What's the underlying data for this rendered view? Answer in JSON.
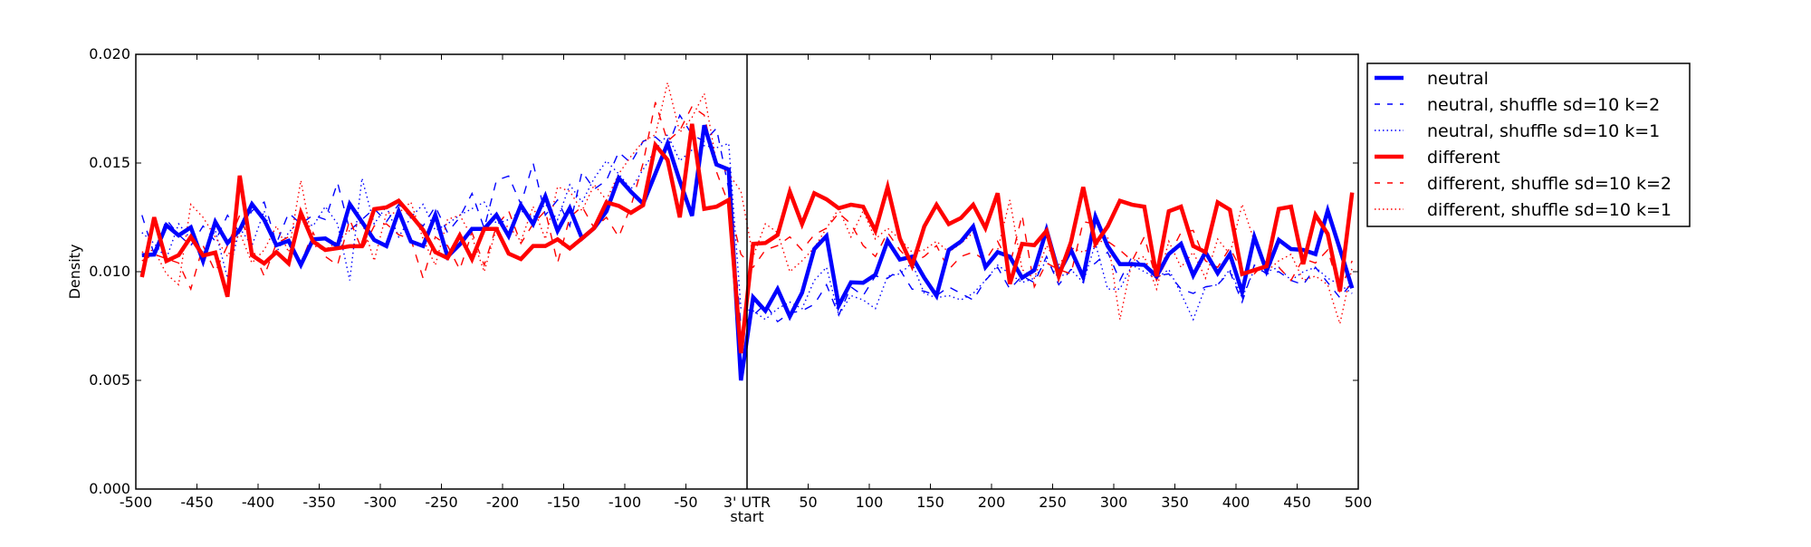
{
  "chart_data": {
    "type": "line",
    "title": "",
    "xlabel": "start",
    "ylabel": "Density",
    "xlim": [
      -500,
      500
    ],
    "ylim": [
      0.0,
      0.02
    ],
    "grid": false,
    "legend_position": "outside-top-right",
    "x_ticks": [
      {
        "value": -500,
        "label": "-500"
      },
      {
        "value": -450,
        "label": "-450"
      },
      {
        "value": -400,
        "label": "-400"
      },
      {
        "value": -350,
        "label": "-350"
      },
      {
        "value": -300,
        "label": "-300"
      },
      {
        "value": -250,
        "label": "-250"
      },
      {
        "value": -200,
        "label": "-200"
      },
      {
        "value": -150,
        "label": "-150"
      },
      {
        "value": -100,
        "label": "-100"
      },
      {
        "value": -50,
        "label": "-50"
      },
      {
        "value": 0,
        "label": "3' UTR"
      },
      {
        "value": 50,
        "label": "50"
      },
      {
        "value": 100,
        "label": "100"
      },
      {
        "value": 150,
        "label": "150"
      },
      {
        "value": 200,
        "label": "200"
      },
      {
        "value": 250,
        "label": "250"
      },
      {
        "value": 300,
        "label": "300"
      },
      {
        "value": 350,
        "label": "350"
      },
      {
        "value": 400,
        "label": "400"
      },
      {
        "value": 450,
        "label": "450"
      },
      {
        "value": 500,
        "label": "500"
      }
    ],
    "y_ticks": [
      {
        "value": 0.0,
        "label": "0.000"
      },
      {
        "value": 0.005,
        "label": "0.005"
      },
      {
        "value": 0.01,
        "label": "0.010"
      },
      {
        "value": 0.015,
        "label": "0.015"
      },
      {
        "value": 0.02,
        "label": "0.020"
      }
    ],
    "vline": {
      "x": 0
    },
    "x_start": -495,
    "x_step": 10,
    "series": [
      {
        "name": "neutral",
        "color": "#0000ff",
        "style": "solid",
        "values": [
          0.01076,
          0.01079,
          0.01214,
          0.01167,
          0.01204,
          0.01049,
          0.01229,
          0.01132,
          0.01192,
          0.01311,
          0.01239,
          0.01122,
          0.01142,
          0.01031,
          0.01149,
          0.01153,
          0.01118,
          0.01311,
          0.01229,
          0.01146,
          0.01118,
          0.01278,
          0.01139,
          0.01118,
          0.01261,
          0.01069,
          0.01125,
          0.01197,
          0.01197,
          0.01261,
          0.01164,
          0.01306,
          0.01219,
          0.01347,
          0.01188,
          0.01292,
          0.01153,
          0.01201,
          0.01278,
          0.01431,
          0.01368,
          0.01313,
          0.01451,
          0.0159,
          0.01417,
          0.01257,
          0.01674,
          0.01493,
          0.0147,
          0.005,
          0.00882,
          0.0082,
          0.0092,
          0.00794,
          0.00903,
          0.01104,
          0.01164,
          0.00844,
          0.00951,
          0.00949,
          0.00986,
          0.01142,
          0.01056,
          0.01069,
          0.00972,
          0.00889,
          0.011,
          0.01139,
          0.01208,
          0.01021,
          0.0109,
          0.01069,
          0.00972,
          0.01007,
          0.01192,
          0.00993,
          0.011,
          0.00975,
          0.01253,
          0.01118,
          0.01035,
          0.01035,
          0.01031,
          0.00979,
          0.01081,
          0.01128,
          0.00983,
          0.0109,
          0.00993,
          0.01081,
          0.00906,
          0.0116,
          0.01003,
          0.01146,
          0.01104,
          0.011,
          0.01081,
          0.01281,
          0.01104,
          0.00924
        ]
      },
      {
        "name": "neutral, shuffle sd=10 k=2",
        "color": "#0000ff",
        "style": "dashed",
        "values": [
          0.0126,
          0.0108,
          0.0124,
          0.0117,
          0.0112,
          0.0121,
          0.0114,
          0.0126,
          0.0118,
          0.0128,
          0.0132,
          0.0113,
          0.0127,
          0.0122,
          0.0126,
          0.0124,
          0.0141,
          0.0119,
          0.0124,
          0.0129,
          0.0123,
          0.0131,
          0.0125,
          0.0121,
          0.013,
          0.0118,
          0.0125,
          0.0136,
          0.012,
          0.0142,
          0.0144,
          0.0131,
          0.015,
          0.0126,
          0.0133,
          0.0121,
          0.0146,
          0.0138,
          0.0142,
          0.0155,
          0.015,
          0.016,
          0.0162,
          0.0157,
          0.0172,
          0.0163,
          0.016,
          0.0166,
          0.0138,
          0.0075,
          0.008,
          0.0085,
          0.0077,
          0.0081,
          0.0082,
          0.0085,
          0.0094,
          0.008,
          0.0093,
          0.0089,
          0.0098,
          0.0097,
          0.0101,
          0.0092,
          0.0091,
          0.0089,
          0.0093,
          0.009,
          0.0087,
          0.0096,
          0.0102,
          0.0092,
          0.0098,
          0.0095,
          0.0107,
          0.0094,
          0.0101,
          0.01,
          0.0104,
          0.0109,
          0.0096,
          0.0107,
          0.0102,
          0.0098,
          0.0099,
          0.0092,
          0.009,
          0.0093,
          0.0094,
          0.01,
          0.0086,
          0.0103,
          0.0099,
          0.01,
          0.0096,
          0.0094,
          0.0102,
          0.0095,
          0.0088,
          0.0095
        ]
      },
      {
        "name": "neutral, shuffle sd=10 k=1",
        "color": "#0000ff",
        "style": "dotted",
        "values": [
          0.0118,
          0.0113,
          0.0106,
          0.0122,
          0.0115,
          0.0109,
          0.0119,
          0.0097,
          0.012,
          0.0112,
          0.0128,
          0.0109,
          0.0118,
          0.0124,
          0.0121,
          0.013,
          0.0122,
          0.0096,
          0.0143,
          0.0122,
          0.013,
          0.0116,
          0.0125,
          0.0131,
          0.0119,
          0.0122,
          0.0126,
          0.0129,
          0.0132,
          0.0122,
          0.0124,
          0.0128,
          0.0125,
          0.0131,
          0.0124,
          0.014,
          0.0132,
          0.0143,
          0.0151,
          0.0145,
          0.0138,
          0.0147,
          0.0156,
          0.0163,
          0.0151,
          0.0156,
          0.0158,
          0.0157,
          0.0159,
          0.0083,
          0.0082,
          0.0078,
          0.0083,
          0.0086,
          0.0083,
          0.0096,
          0.0102,
          0.008,
          0.0089,
          0.0087,
          0.0083,
          0.0098,
          0.0099,
          0.0104,
          0.009,
          0.0088,
          0.0089,
          0.0087,
          0.009,
          0.0096,
          0.0103,
          0.0099,
          0.0095,
          0.0097,
          0.0105,
          0.0097,
          0.0101,
          0.0095,
          0.0113,
          0.0092,
          0.0092,
          0.0103,
          0.01,
          0.0097,
          0.0101,
          0.009,
          0.0078,
          0.0093,
          0.0094,
          0.0101,
          0.0088,
          0.0101,
          0.01,
          0.0102,
          0.0096,
          0.01,
          0.0102,
          0.0097,
          0.0094,
          0.009
        ]
      },
      {
        "name": "different",
        "color": "#ff0000",
        "style": "solid",
        "values": [
          0.00975,
          0.0125,
          0.01049,
          0.01076,
          0.0116,
          0.01074,
          0.01088,
          0.00885,
          0.01442,
          0.01076,
          0.01038,
          0.0109,
          0.01038,
          0.01271,
          0.01139,
          0.011,
          0.01108,
          0.01117,
          0.01117,
          0.01288,
          0.01296,
          0.01326,
          0.01261,
          0.01192,
          0.0109,
          0.01063,
          0.01167,
          0.01058,
          0.01197,
          0.01197,
          0.01083,
          0.01058,
          0.01118,
          0.01118,
          0.01149,
          0.01107,
          0.01153,
          0.01201,
          0.01319,
          0.01303,
          0.01271,
          0.01306,
          0.01583,
          0.01514,
          0.0125,
          0.0168,
          0.01289,
          0.01299,
          0.0133,
          0.00625,
          0.01128,
          0.01132,
          0.01169,
          0.01368,
          0.01219,
          0.01361,
          0.01333,
          0.01292,
          0.01308,
          0.01299,
          0.01188,
          0.01389,
          0.01153,
          0.01028,
          0.01208,
          0.01308,
          0.01219,
          0.01247,
          0.01308,
          0.01201,
          0.01361,
          0.00944,
          0.01128,
          0.01122,
          0.01188,
          0.00979,
          0.01136,
          0.01389,
          0.01128,
          0.01208,
          0.01326,
          0.01308,
          0.01299,
          0.00979,
          0.01278,
          0.01299,
          0.01118,
          0.0109,
          0.01319,
          0.01285,
          0.00989,
          0.01007,
          0.01025,
          0.01289,
          0.01299,
          0.01035,
          0.01261,
          0.01174,
          0.0091,
          0.01364
        ]
      },
      {
        "name": "different, shuffle sd=10 k=2",
        "color": "#ff0000",
        "style": "dashed",
        "values": [
          0.0105,
          0.0108,
          0.0106,
          0.0104,
          0.0092,
          0.0112,
          0.01,
          0.0112,
          0.0126,
          0.0111,
          0.0098,
          0.0113,
          0.0116,
          0.0104,
          0.0118,
          0.0107,
          0.0103,
          0.0124,
          0.011,
          0.0121,
          0.0122,
          0.0117,
          0.0115,
          0.0097,
          0.0116,
          0.0112,
          0.0101,
          0.0118,
          0.0103,
          0.0121,
          0.0128,
          0.0113,
          0.0122,
          0.0128,
          0.0104,
          0.0125,
          0.013,
          0.012,
          0.0125,
          0.0116,
          0.013,
          0.015,
          0.0178,
          0.016,
          0.0165,
          0.0176,
          0.0172,
          0.0146,
          0.0131,
          0.0108,
          0.0102,
          0.011,
          0.0112,
          0.0116,
          0.011,
          0.0117,
          0.012,
          0.0127,
          0.0122,
          0.0112,
          0.0107,
          0.0118,
          0.011,
          0.0104,
          0.0107,
          0.0112,
          0.0101,
          0.0107,
          0.0109,
          0.0105,
          0.0114,
          0.0103,
          0.0126,
          0.0093,
          0.0104,
          0.0101,
          0.0099,
          0.0123,
          0.0122,
          0.0114,
          0.011,
          0.0105,
          0.0116,
          0.0096,
          0.0107,
          0.0118,
          0.0119,
          0.0105,
          0.0102,
          0.0111,
          0.01,
          0.0099,
          0.0105,
          0.0102,
          0.0096,
          0.0106,
          0.0104,
          0.011,
          0.0091,
          0.0105
        ]
      },
      {
        "name": "different, shuffle sd=10 k=1",
        "color": "#ff0000",
        "style": "dotted",
        "values": [
          0.0109,
          0.011,
          0.0099,
          0.0094,
          0.0131,
          0.0125,
          0.0116,
          0.0107,
          0.0118,
          0.0104,
          0.011,
          0.0121,
          0.0109,
          0.0142,
          0.0112,
          0.011,
          0.0114,
          0.0119,
          0.0123,
          0.0105,
          0.0127,
          0.0127,
          0.0132,
          0.0115,
          0.0103,
          0.0124,
          0.0126,
          0.0116,
          0.01,
          0.012,
          0.0121,
          0.0114,
          0.013,
          0.0115,
          0.0139,
          0.0137,
          0.0128,
          0.014,
          0.0133,
          0.0145,
          0.0153,
          0.016,
          0.0163,
          0.0187,
          0.0164,
          0.0171,
          0.0182,
          0.015,
          0.0145,
          0.0137,
          0.0107,
          0.0122,
          0.0118,
          0.01,
          0.0105,
          0.0111,
          0.012,
          0.0129,
          0.0116,
          0.0128,
          0.0115,
          0.012,
          0.0115,
          0.0109,
          0.011,
          0.0114,
          0.0109,
          0.0113,
          0.0118,
          0.0102,
          0.011,
          0.0133,
          0.0101,
          0.0097,
          0.0112,
          0.0103,
          0.0111,
          0.0109,
          0.0112,
          0.0116,
          0.0078,
          0.0105,
          0.0107,
          0.0092,
          0.0114,
          0.0102,
          0.0109,
          0.0097,
          0.0115,
          0.0108,
          0.0131,
          0.0114,
          0.01,
          0.0105,
          0.0108,
          0.0096,
          0.0098,
          0.0094,
          0.0076,
          0.0102
        ]
      }
    ]
  }
}
